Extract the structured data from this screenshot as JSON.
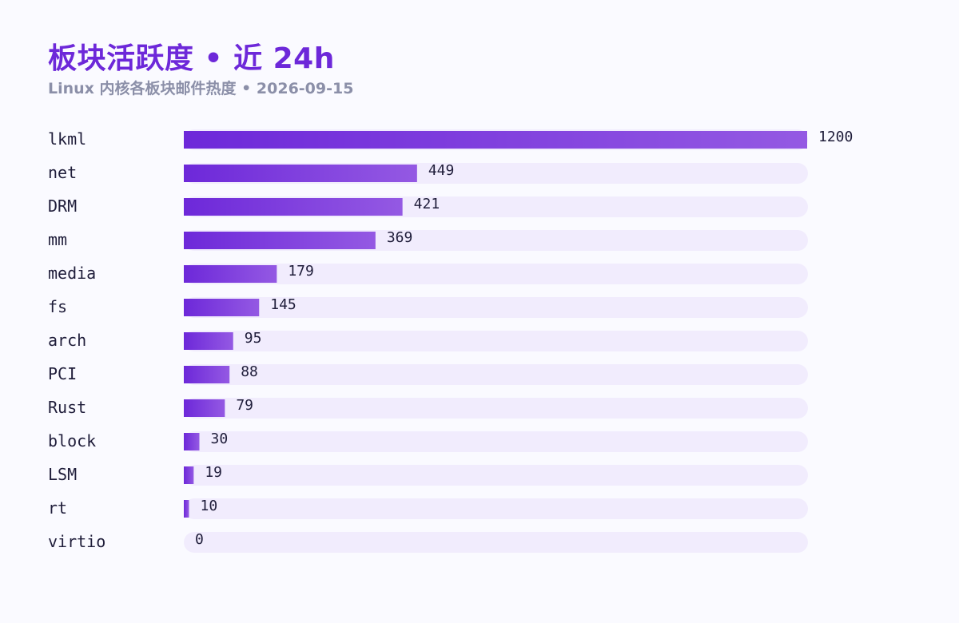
{
  "title": "板块活跃度 • 近 24h",
  "subtitle": "Linux 内核各板块邮件热度 • 2026-09-15",
  "colors": {
    "bar_start": "#6d28d9",
    "bar_end": "#9459e3",
    "track": "#f1ecfd",
    "label": "#1f1d3a"
  },
  "chart_data": {
    "type": "bar",
    "orientation": "horizontal",
    "title": "板块活跃度 • 近 24h",
    "subtitle": "Linux 内核各板块邮件热度 • 2026-09-15",
    "categories": [
      "lkml",
      "net",
      "DRM",
      "mm",
      "media",
      "fs",
      "arch",
      "PCI",
      "Rust",
      "block",
      "LSM",
      "rt",
      "virtio"
    ],
    "values": [
      1200,
      449,
      421,
      369,
      179,
      145,
      95,
      88,
      79,
      30,
      19,
      10,
      0
    ],
    "xlim": [
      0,
      1200
    ],
    "grid": false,
    "legend": false
  }
}
